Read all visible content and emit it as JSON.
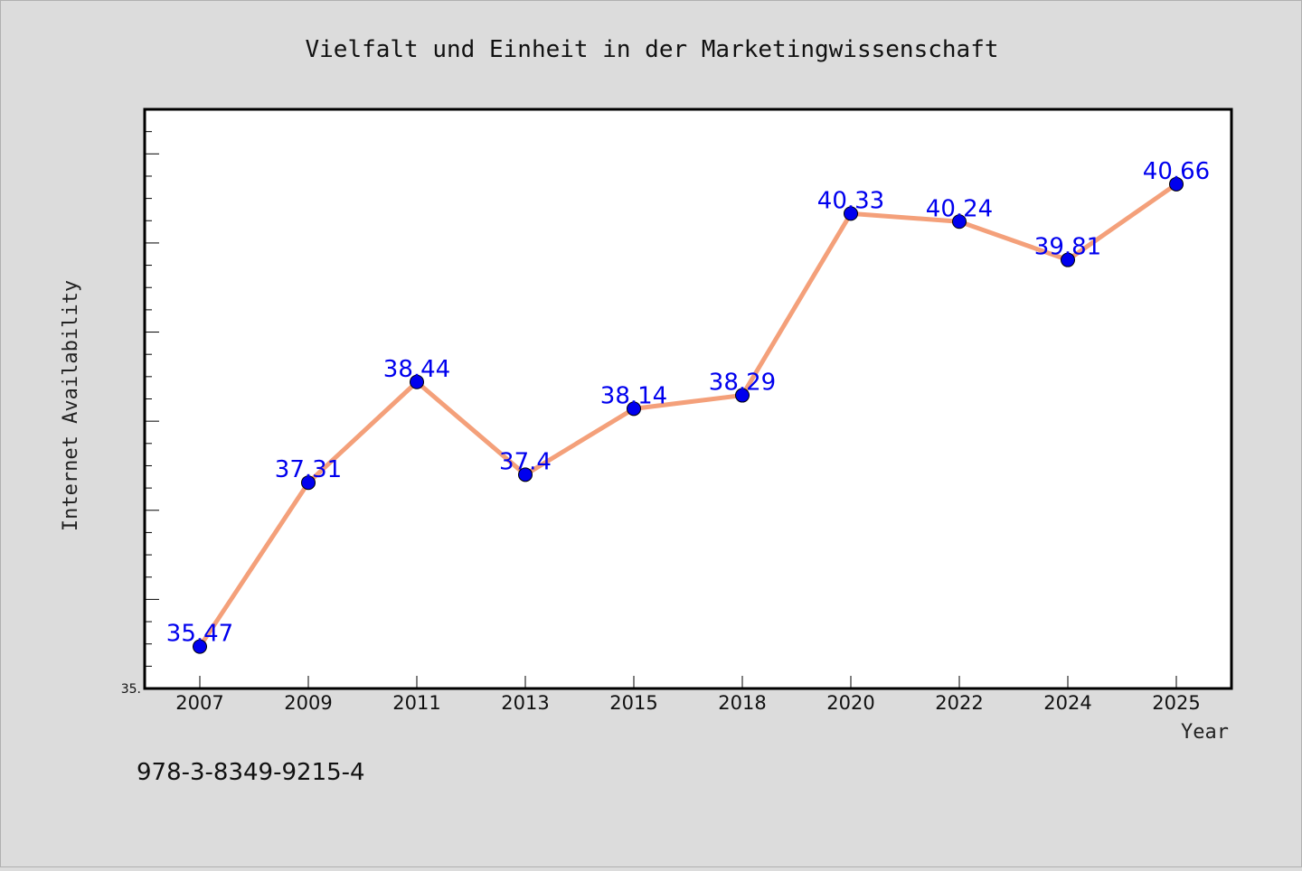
{
  "footer_text": "978-3-8349-9215-4",
  "chart_data": {
    "type": "line",
    "title": "Vielfalt und Einheit in der Marketingwissenschaft",
    "xlabel": "Year",
    "ylabel": "Internet Availability",
    "categories": [
      "2007",
      "2009",
      "2011",
      "2013",
      "2015",
      "2018",
      "2020",
      "2022",
      "2024",
      "2025"
    ],
    "values": [
      35.47,
      37.31,
      38.44,
      37.4,
      38.14,
      38.29,
      40.33,
      40.24,
      39.81,
      40.66
    ],
    "data_labels": [
      "35.47",
      "37.31",
      "38.44",
      "37.4",
      "38.14",
      "38.29",
      "40.33",
      "40.24",
      "39.81",
      "40.66"
    ],
    "ylim": [
      35.0,
      41.5
    ],
    "y_tick_labels": [
      "35."
    ],
    "grid": false,
    "legend": "none",
    "line_color": "#f4a07a",
    "marker_color": "#0000ee",
    "label_color": "#0000ee",
    "plot_background": "#ffffff",
    "page_background": "#dcdcdc"
  }
}
